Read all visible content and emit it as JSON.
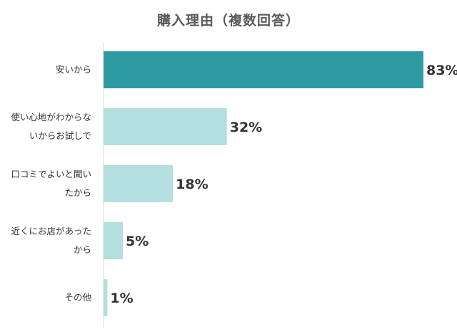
{
  "chart_data": {
    "type": "bar",
    "orientation": "horizontal",
    "title": "購入理由（複数回答）",
    "categories": [
      "安いから",
      "使い心地がわからないからお試しで",
      "口コミでよいと聞いたから",
      "近くにお店があったから",
      "その他"
    ],
    "category_lines": [
      [
        "安いから"
      ],
      [
        "使い心地がわからな",
        "いからお試しで"
      ],
      [
        "口コミでよいと聞い",
        "たから"
      ],
      [
        "近くにお店があった",
        "から"
      ],
      [
        "その他"
      ]
    ],
    "values": [
      83,
      32,
      18,
      5,
      1
    ],
    "value_labels": [
      "83%",
      "32%",
      "18%",
      "5%",
      "1%"
    ],
    "unit": "%",
    "xlim": [
      0,
      100
    ],
    "grid": false,
    "legend": "none",
    "colors": {
      "highlight": "#2e9ba3",
      "normal": "#b3dfde",
      "axis": "#d9d9d9"
    }
  }
}
